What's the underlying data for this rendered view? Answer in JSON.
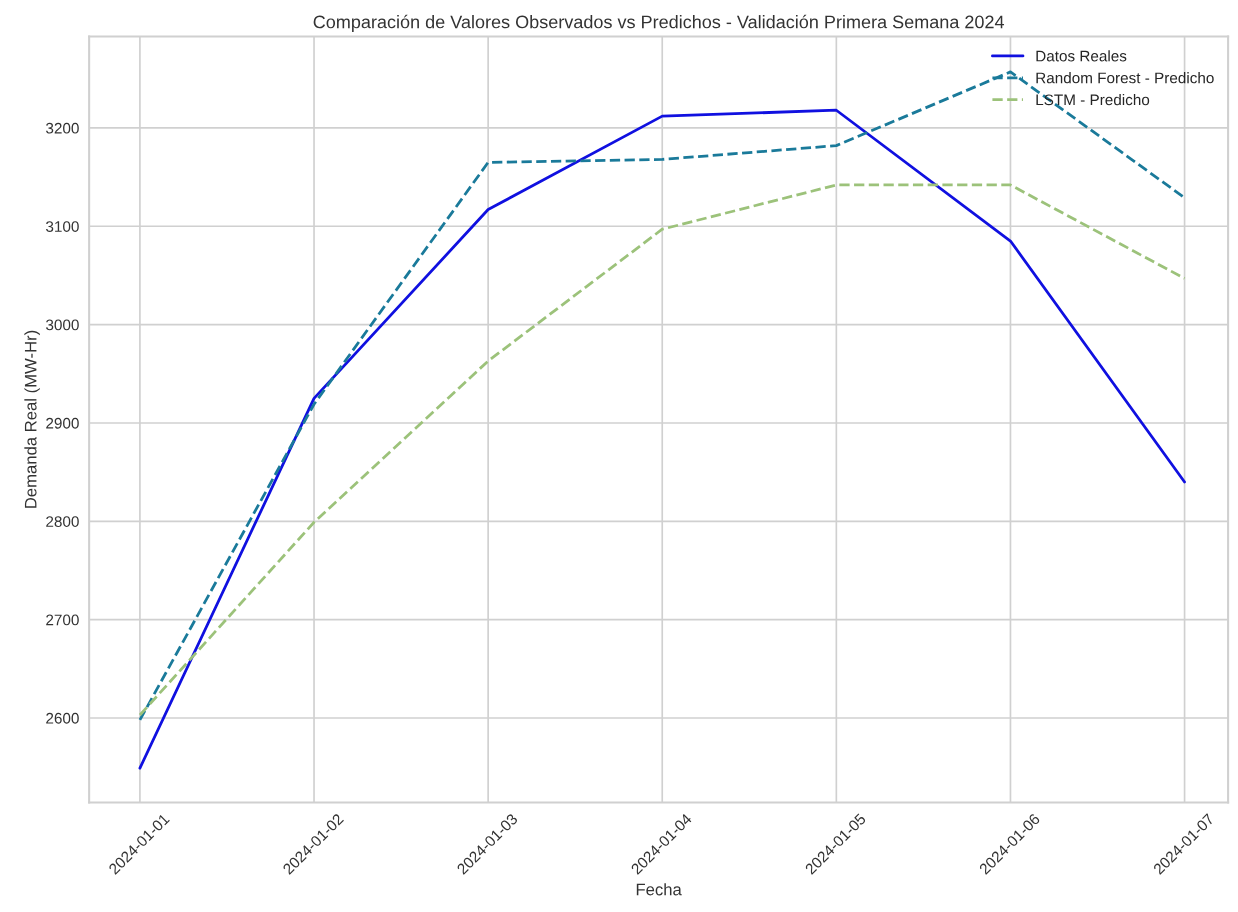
{
  "chart_data": {
    "type": "line",
    "title": "Comparación de Valores Observados vs Predichos - Validación Primera Semana 2024",
    "xlabel": "Fecha",
    "ylabel": "Demanda Real (MW-Hr)",
    "x": [
      "2024-01-01",
      "2024-01-02",
      "2024-01-03",
      "2024-01-04",
      "2024-01-05",
      "2024-01-06",
      "2024-01-07"
    ],
    "series": [
      {
        "name": "Datos Reales",
        "color": "#1010e0",
        "line_style": "solid",
        "values": [
          2549,
          2925,
          3117,
          3212,
          3218,
          3085,
          2840
        ]
      },
      {
        "name": "Random Forest - Predicho",
        "color": "#1a7a9a",
        "line_style": "dashed",
        "values": [
          2598,
          2919,
          3165,
          3168,
          3182,
          3257,
          3129
        ]
      },
      {
        "name": "LSTM - Predicho",
        "color": "#9cc27a",
        "line_style": "dashed",
        "values": [
          2603,
          2799,
          2963,
          3097,
          3142,
          3142,
          3047
        ]
      }
    ],
    "xlim": [
      "2023-12-31T17:00",
      "2024-01-07T06:00"
    ],
    "xticks": [
      "2024-01-01",
      "2024-01-02",
      "2024-01-03",
      "2024-01-04",
      "2024-01-05",
      "2024-01-06",
      "2024-01-07"
    ],
    "ylim": [
      2514,
      3293
    ],
    "yticks": [
      2600,
      2700,
      2800,
      2900,
      3000,
      3100,
      3200
    ],
    "grid": true,
    "legend": "top right",
    "marker": "none"
  }
}
